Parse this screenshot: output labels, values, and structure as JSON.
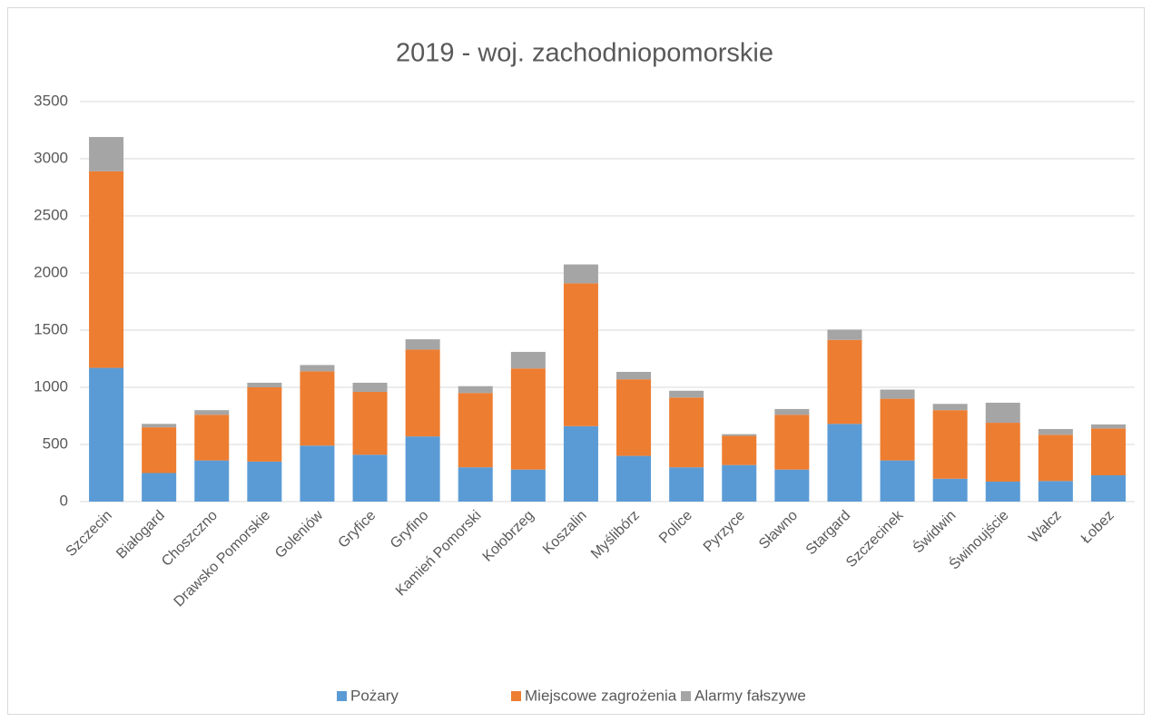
{
  "chart_data": {
    "type": "stacked_bar",
    "title": "2019 - woj. zachodniopomorskie",
    "categories": [
      "Szczecin",
      "Białogard",
      "Choszczno",
      "Drawsko Pomorskie",
      "Goleniów",
      "Gryfice",
      "Gryfino",
      "Kamień Pomorski",
      "Kołobrzeg",
      "Koszalin",
      "Myślibórz",
      "Police",
      "Pyrzyce",
      "Sławno",
      "Stargard",
      "Szczecinek",
      "Świdwin",
      "Świnoujście",
      "Wałcz",
      "Łobez"
    ],
    "series": [
      {
        "name": "Pożary",
        "color": "#5b9bd5",
        "values": [
          1170,
          250,
          360,
          350,
          490,
          410,
          570,
          300,
          280,
          660,
          400,
          300,
          320,
          280,
          680,
          360,
          200,
          175,
          180,
          230
        ]
      },
      {
        "name": "Miejscowe zagrożenia",
        "color": "#ed7d31",
        "values": [
          1720,
          400,
          400,
          650,
          650,
          550,
          760,
          650,
          885,
          1250,
          670,
          610,
          255,
          480,
          735,
          540,
          600,
          515,
          405,
          410
        ]
      },
      {
        "name": "Alarmy fałszywe",
        "color": "#a5a5a5",
        "values": [
          300,
          30,
          40,
          40,
          55,
          80,
          90,
          60,
          145,
          165,
          65,
          60,
          15,
          50,
          90,
          80,
          55,
          175,
          50,
          35
        ]
      }
    ],
    "ylim": [
      0,
      3500
    ],
    "yticks": [
      0,
      500,
      1000,
      1500,
      2000,
      2500,
      3000,
      3500
    ],
    "grid": true,
    "legend": "bottom"
  }
}
